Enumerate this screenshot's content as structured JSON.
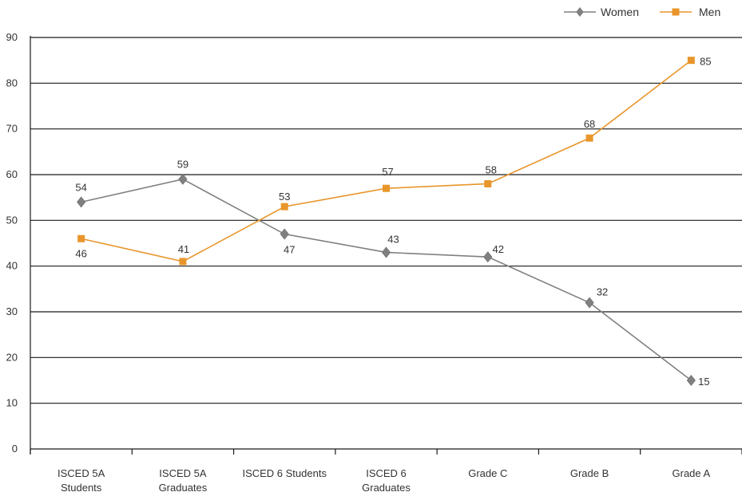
{
  "chart_data": {
    "type": "line",
    "categories": [
      [
        "ISCED 5A",
        "Students"
      ],
      [
        "ISCED 5A",
        "Graduates"
      ],
      [
        "ISCED 6  Students"
      ],
      [
        "ISCED 6",
        "Graduates"
      ],
      [
        "Grade C"
      ],
      [
        "Grade B"
      ],
      [
        "Grade A"
      ]
    ],
    "series": [
      {
        "name": "Women",
        "values": [
          54,
          59,
          47,
          43,
          42,
          32,
          15
        ],
        "color": "#808080",
        "marker": "diamond"
      },
      {
        "name": "Men",
        "values": [
          46,
          41,
          53,
          57,
          58,
          68,
          85
        ],
        "color": "#E8962B",
        "marker": "square"
      }
    ],
    "data_labels": {
      "Women": [
        "54",
        "59",
        "47",
        "43",
        "42",
        "32",
        "15"
      ],
      "Men": [
        "46",
        "41",
        "53",
        "57",
        "58",
        "68",
        "85"
      ]
    },
    "ylim": [
      0,
      90
    ],
    "yticks": [
      "0",
      "10",
      "20",
      "30",
      "40",
      "50",
      "60",
      "70",
      "80",
      "90"
    ],
    "grid": true,
    "legend_position": "top-right",
    "title": "",
    "xlabel": "",
    "ylabel": ""
  }
}
